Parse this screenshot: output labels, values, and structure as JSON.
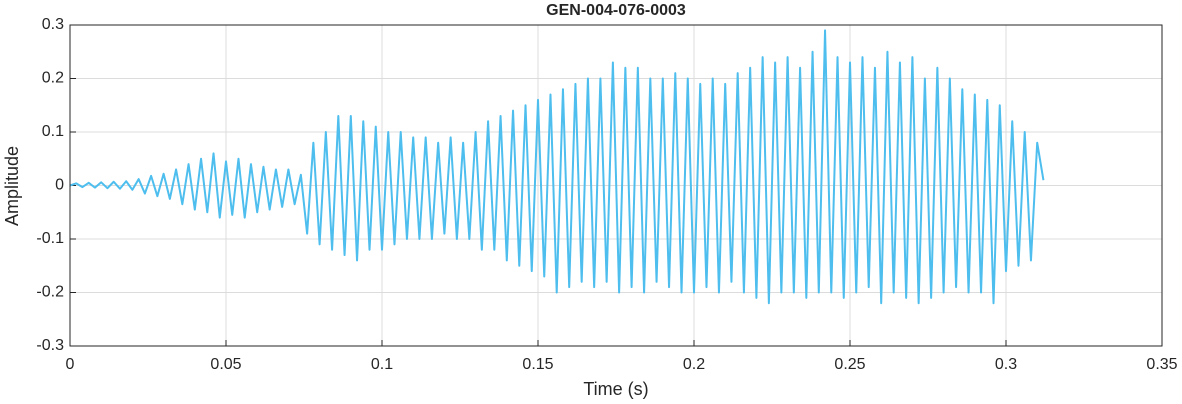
{
  "chart_data": {
    "type": "line",
    "title": "GEN-004-076-0003",
    "xlabel": "Time (s)",
    "ylabel": "Amplitude",
    "color": "#4dbeee",
    "grid": true,
    "xlim": [
      0,
      0.35
    ],
    "xticks": [
      0,
      0.05,
      0.1,
      0.15,
      0.2,
      0.25,
      0.3,
      0.35
    ],
    "ylim": [
      -0.3,
      0.3
    ],
    "yticks": [
      -0.3,
      -0.2,
      -0.1,
      0,
      0.1,
      0.2,
      0.3
    ],
    "x": [
      0,
      0.002,
      0.004,
      0.006,
      0.008,
      0.01,
      0.012,
      0.014,
      0.016,
      0.018,
      0.02,
      0.022,
      0.024,
      0.026,
      0.028,
      0.03,
      0.032,
      0.034,
      0.036,
      0.038,
      0.04,
      0.042,
      0.044,
      0.046,
      0.048,
      0.05,
      0.052,
      0.054,
      0.056,
      0.058,
      0.06,
      0.062,
      0.064,
      0.066,
      0.068,
      0.07,
      0.072,
      0.074,
      0.076,
      0.078,
      0.08,
      0.082,
      0.084,
      0.086,
      0.088,
      0.09,
      0.092,
      0.094,
      0.096,
      0.098,
      0.1,
      0.102,
      0.104,
      0.106,
      0.108,
      0.11,
      0.112,
      0.114,
      0.116,
      0.118,
      0.12,
      0.122,
      0.124,
      0.126,
      0.128,
      0.13,
      0.132,
      0.134,
      0.136,
      0.138,
      0.14,
      0.142,
      0.144,
      0.146,
      0.148,
      0.15,
      0.152,
      0.154,
      0.156,
      0.158,
      0.16,
      0.162,
      0.164,
      0.166,
      0.168,
      0.17,
      0.172,
      0.174,
      0.176,
      0.178,
      0.18,
      0.182,
      0.184,
      0.186,
      0.188,
      0.19,
      0.192,
      0.194,
      0.196,
      0.198,
      0.2,
      0.202,
      0.204,
      0.206,
      0.208,
      0.21,
      0.212,
      0.214,
      0.216,
      0.218,
      0.22,
      0.222,
      0.224,
      0.226,
      0.228,
      0.23,
      0.232,
      0.234,
      0.236,
      0.238,
      0.24,
      0.242,
      0.244,
      0.246,
      0.248,
      0.25,
      0.252,
      0.254,
      0.256,
      0.258,
      0.26,
      0.262,
      0.264,
      0.266,
      0.268,
      0.27,
      0.272,
      0.274,
      0.276,
      0.278,
      0.28,
      0.282,
      0.284,
      0.286,
      0.288,
      0.29,
      0.292,
      0.294,
      0.296,
      0.298,
      0.3,
      0.302,
      0.304,
      0.306,
      0.308,
      0.31,
      0.312
    ],
    "values": [
      0,
      0.004,
      -0.003,
      0.005,
      -0.004,
      0.006,
      -0.005,
      0.007,
      -0.006,
      0.008,
      -0.008,
      0.012,
      -0.015,
      0.018,
      -0.02,
      0.022,
      -0.025,
      0.03,
      -0.035,
      0.04,
      -0.045,
      0.05,
      -0.05,
      0.06,
      -0.06,
      0.045,
      -0.055,
      0.05,
      -0.06,
      0.04,
      -0.05,
      0.035,
      -0.045,
      0.03,
      -0.04,
      0.03,
      -0.035,
      0.02,
      -0.09,
      0.08,
      -0.11,
      0.1,
      -0.12,
      0.13,
      -0.13,
      0.13,
      -0.14,
      0.12,
      -0.12,
      0.11,
      -0.12,
      0.1,
      -0.11,
      0.1,
      -0.1,
      0.09,
      -0.1,
      0.09,
      -0.1,
      0.08,
      -0.09,
      0.09,
      -0.1,
      0.08,
      -0.1,
      0.1,
      -0.12,
      0.12,
      -0.12,
      0.13,
      -0.14,
      0.14,
      -0.15,
      0.15,
      -0.16,
      0.16,
      -0.17,
      0.17,
      -0.2,
      0.18,
      -0.19,
      0.19,
      -0.18,
      0.2,
      -0.19,
      0.2,
      -0.18,
      0.23,
      -0.2,
      0.22,
      -0.19,
      0.22,
      -0.2,
      0.2,
      -0.18,
      0.2,
      -0.19,
      0.21,
      -0.2,
      0.2,
      -0.2,
      0.19,
      -0.19,
      0.2,
      -0.2,
      0.19,
      -0.18,
      0.21,
      -0.2,
      0.22,
      -0.21,
      0.24,
      -0.22,
      0.23,
      -0.2,
      0.24,
      -0.2,
      0.22,
      -0.21,
      0.25,
      -0.2,
      0.29,
      -0.2,
      0.24,
      -0.21,
      0.23,
      -0.2,
      0.24,
      -0.19,
      0.22,
      -0.22,
      0.25,
      -0.2,
      0.23,
      -0.21,
      0.24,
      -0.22,
      0.2,
      -0.21,
      0.22,
      -0.2,
      0.2,
      -0.19,
      0.18,
      -0.2,
      0.17,
      -0.2,
      0.16,
      -0.22,
      0.15,
      -0.16,
      0.12,
      -0.15,
      0.1,
      -0.14,
      0.08,
      0.01
    ]
  }
}
